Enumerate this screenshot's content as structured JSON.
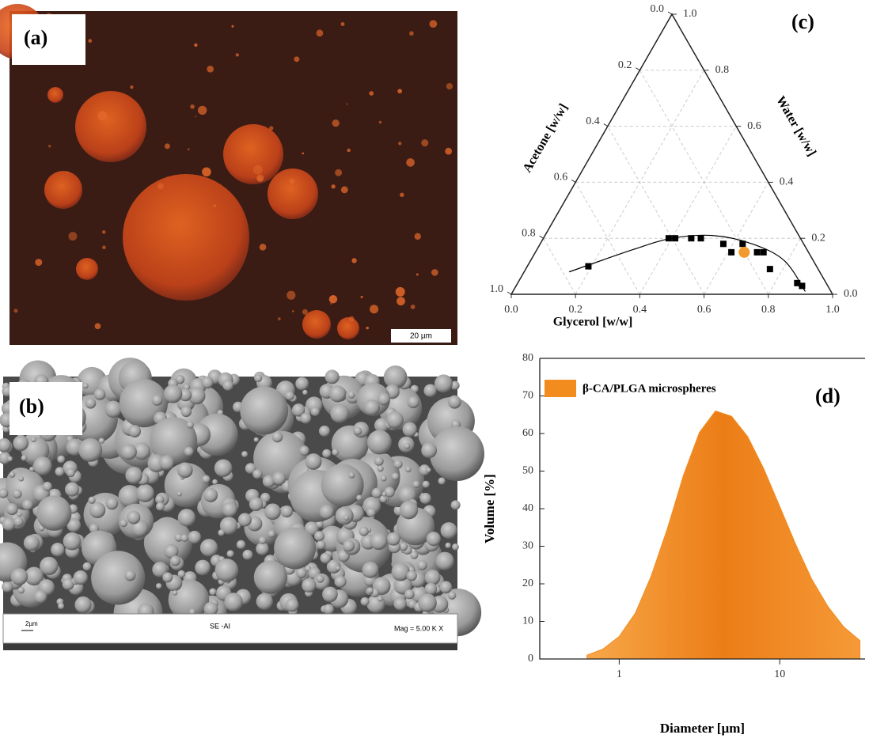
{
  "panels": [
    {
      "label": "(a)",
      "scale_bar": "20 µm"
    },
    {
      "label": "(b)",
      "scale_bar": "2µm",
      "detector": "SE -AI",
      "magnification": "Mag = 5.00 K X"
    }
  ],
  "chart_data": [
    {
      "type": "ternary",
      "label": "(c)",
      "left_axis_label": "Acetone [w/w]",
      "right_axis_label": "Water [w/w]",
      "bottom_axis_label": "Glycerol [w/w]",
      "acetone_ticks": [
        {
          "value": 0,
          "label": "0.0"
        },
        0.2,
        0.4,
        0.6,
        0.8,
        {
          "value": 1,
          "label": "1.0"
        }
      ],
      "water_ticks": [
        {
          "value": 0,
          "label": "0.0"
        },
        0.2,
        0.4,
        0.6,
        0.8,
        {
          "value": 1,
          "label": "1.0"
        }
      ],
      "glycerol_ticks": [
        {
          "value": 0,
          "label": "0.0"
        },
        0.2,
        0.4,
        0.6,
        0.8,
        {
          "value": 1,
          "label": "1.0"
        }
      ],
      "grid": true,
      "points": {
        "color": "#000000",
        "glycerol": [
          0.19,
          0.39,
          0.41,
          0.46,
          0.49,
          0.57,
          0.61,
          0.63,
          0.69,
          0.71,
          0.76,
          0.87,
          0.89
        ],
        "water": [
          0.1,
          0.2,
          0.2,
          0.2,
          0.2,
          0.18,
          0.15,
          0.18,
          0.15,
          0.15,
          0.09,
          0.04,
          0.03
        ]
      },
      "highlight": {
        "color": "#f39a2e",
        "glycerol": [
          0.65
        ],
        "water": [
          0.15
        ]
      },
      "curve": {
        "color": "#000000",
        "glycerol": [
          0.14,
          0.3,
          0.4,
          0.52,
          0.66,
          0.79,
          0.91
        ],
        "water": [
          0.08,
          0.16,
          0.2,
          0.21,
          0.18,
          0.12,
          0.01
        ]
      }
    },
    {
      "type": "area",
      "label": "(d)",
      "xlabel": "Diameter [µm]",
      "ylabel": "Volume [%]",
      "x": [
        0.63,
        0.79,
        1,
        1.26,
        1.58,
        2,
        2.51,
        3.16,
        3.98,
        5.01,
        6.31,
        7.94,
        10,
        12.6,
        15.8,
        20,
        25.1,
        31.6
      ],
      "series": [
        {
          "name": "β-CA/PLGA microspheres",
          "color": "#f28c1e",
          "values": [
            1,
            2.6,
            6,
            12.2,
            22,
            34.8,
            48.8,
            60.3,
            66,
            64.6,
            59.2,
            50.7,
            40.6,
            30.4,
            21.3,
            13.9,
            8.5,
            4.9
          ]
        }
      ],
      "xscale": "log",
      "xlim": [
        0.32,
        34
      ],
      "ylim": [
        0,
        80
      ],
      "xticks": [
        1,
        10
      ],
      "yticks": [
        0,
        10,
        20,
        30,
        40,
        50,
        60,
        70,
        80
      ],
      "legend": "upper left"
    }
  ]
}
